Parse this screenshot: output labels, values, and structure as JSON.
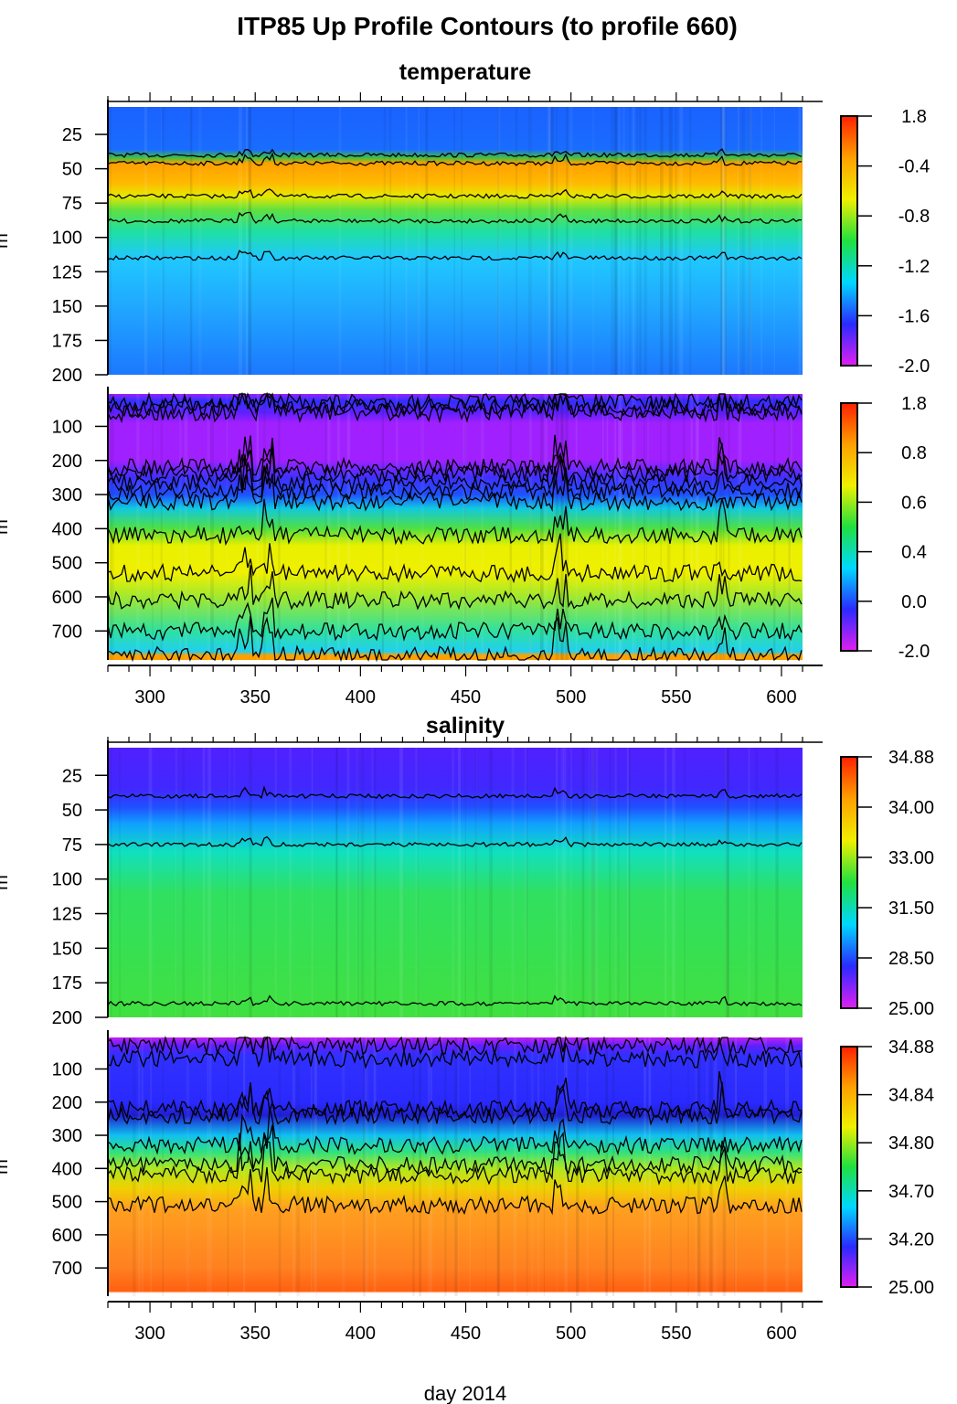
{
  "title": "ITP85 Up Profile Contours (to profile 660)",
  "section_titles": [
    "temperature",
    "salinity"
  ],
  "xlabel": "day 2014",
  "ylabel": "m",
  "colormap": [
    "#e020f0",
    "#2a2aff",
    "#00d8ff",
    "#20e040",
    "#f0f000",
    "#ffa000",
    "#ff2000"
  ],
  "chart_data": [
    {
      "type": "heatmap",
      "variable": "temperature",
      "xlim": [
        280,
        610
      ],
      "ylim": [
        5,
        200
      ],
      "xticks": [
        300,
        350,
        400,
        450,
        500,
        550,
        600
      ],
      "yticks": [
        25,
        50,
        75,
        100,
        125,
        150,
        175,
        200
      ],
      "colorbar_labels": [
        "1.8",
        "-0.4",
        "-0.8",
        "-1.2",
        "-1.6",
        "-2.0"
      ],
      "contour_depths": [
        40,
        46,
        70,
        88,
        115
      ]
    },
    {
      "type": "heatmap",
      "variable": "temperature",
      "xlim": [
        280,
        610
      ],
      "ylim": [
        5,
        785
      ],
      "xticks": [
        300,
        350,
        400,
        450,
        500,
        550,
        600
      ],
      "yticks": [
        100,
        200,
        300,
        400,
        500,
        600,
        700
      ],
      "colorbar_labels": [
        "1.8",
        "0.8",
        "0.6",
        "0.4",
        "0.0",
        "-2.0"
      ],
      "contour_depths": [
        30,
        45,
        60,
        220,
        240,
        265,
        290,
        320,
        420,
        530,
        610,
        700,
        770
      ]
    },
    {
      "type": "heatmap",
      "variable": "salinity",
      "xlim": [
        280,
        610
      ],
      "ylim": [
        5,
        200
      ],
      "xticks": [
        300,
        350,
        400,
        450,
        500,
        550,
        600
      ],
      "yticks": [
        25,
        50,
        75,
        100,
        125,
        150,
        175,
        200
      ],
      "colorbar_labels": [
        "34.88",
        "34.00",
        "33.00",
        "31.50",
        "28.50",
        "25.00"
      ],
      "contour_depths": [
        40,
        75,
        190
      ]
    },
    {
      "type": "heatmap",
      "variable": "salinity",
      "xlim": [
        280,
        610
      ],
      "ylim": [
        5,
        785
      ],
      "xticks": [
        300,
        350,
        400,
        450,
        500,
        550,
        600
      ],
      "yticks": [
        100,
        200,
        300,
        400,
        500,
        600,
        700
      ],
      "colorbar_labels": [
        "34.88",
        "34.84",
        "34.80",
        "34.70",
        "34.20",
        "25.00"
      ],
      "contour_depths": [
        30,
        70,
        220,
        240,
        330,
        390,
        420,
        510
      ]
    }
  ]
}
